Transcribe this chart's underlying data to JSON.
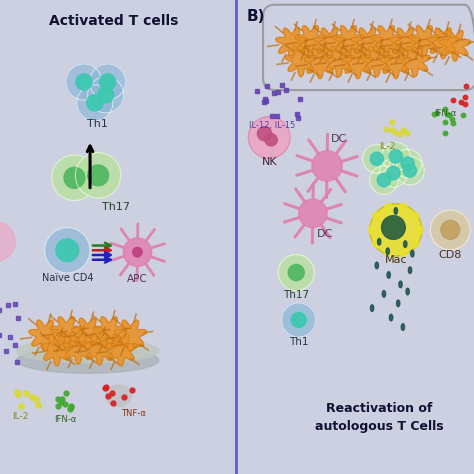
{
  "bg_color": "#cdd0e0",
  "left_panel_title": "Activated T cells",
  "right_panel_label": "B)",
  "right_panel_bottom_text": "Reactivation of\nautologous T Cells",
  "colors": {
    "teal_nucleus": "#3ec8b0",
    "blue_cell": "#90b8d8",
    "light_green_cell": "#b8e0a0",
    "medium_green_nucleus": "#50b860",
    "orange_cell": "#e8922a",
    "orange_dark": "#c07010",
    "pink_cell": "#f0a0c0",
    "pink_dc": "#e080b0",
    "yellow_mac": "#e8e030",
    "dark_green_mac": "#2a6040",
    "light_tan_cd8": "#d8c8a0",
    "tan_nucleus_cd8": "#c0a060",
    "purple_dots": "#6040b0",
    "green_dots": "#40a830",
    "red_dots": "#d82020",
    "yellow_dots": "#d8d840",
    "dark_teal_drops": "#1a5050",
    "gray_dish": "#a8b0b0",
    "gray_dish_light": "#c0c8c0",
    "divider_color": "#6060c0"
  }
}
